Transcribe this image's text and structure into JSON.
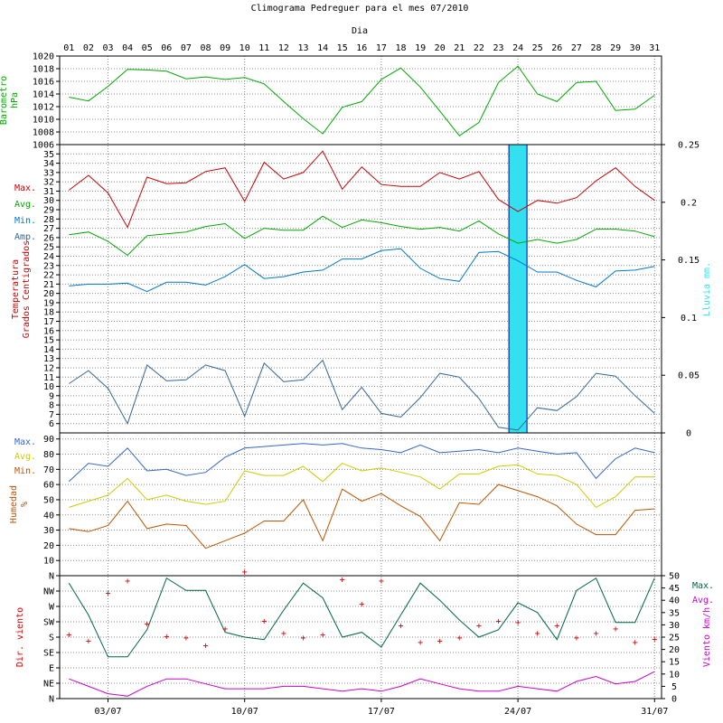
{
  "title": "Climograma Pedreguer para el mes 07/2010",
  "day_axis_label": "Dia",
  "colors": {
    "grid": "#888888",
    "axis": "#000000",
    "pressure": "#00aa00",
    "t_max": "#cc0000",
    "t_avg": "#00aa00",
    "t_min": "#0077cc",
    "t_amp": "#336699",
    "rain": "#33e0f0",
    "h_max": "#3366cc",
    "h_avg": "#cccc00",
    "h_min": "#bb5500",
    "wind_dir": "#dd0000",
    "wind_max": "#006644",
    "wind_avg": "#cc00cc"
  },
  "days": [
    "01",
    "02",
    "03",
    "04",
    "05",
    "06",
    "07",
    "08",
    "09",
    "10",
    "11",
    "12",
    "13",
    "14",
    "15",
    "16",
    "17",
    "18",
    "19",
    "20",
    "21",
    "22",
    "23",
    "24",
    "25",
    "26",
    "27",
    "28",
    "29",
    "30",
    "31"
  ],
  "date_ticks": [
    {
      "day": 3,
      "label": "03/07"
    },
    {
      "day": 10,
      "label": "10/07"
    },
    {
      "day": 17,
      "label": "17/07"
    },
    {
      "day": 24,
      "label": "24/07"
    },
    {
      "day": 31,
      "label": "31/07"
    }
  ],
  "panels": {
    "pressure": {
      "ylabel_line1": "Barometro",
      "ylabel_line2": "hPa",
      "ylim": [
        1006,
        1020
      ]
    },
    "temperature": {
      "ylabel_line1": "Temperatura",
      "ylabel_line2": "Grados Centigrados",
      "ylim": [
        6,
        35
      ],
      "y2label": "Lluvia mm.",
      "y2lim": [
        0,
        0.25
      ],
      "y2ticks": [
        "0",
        "0.05",
        "0.1",
        "0.15",
        "0.2",
        "0.25"
      ],
      "legend": [
        "Max.",
        "Avg.",
        "Min.",
        "Amp."
      ]
    },
    "humidity": {
      "ylabel_line1": "Humedad",
      "ylabel_line2": "%",
      "ylim": [
        0,
        90
      ],
      "legend": [
        "Max.",
        "Avg.",
        "Min."
      ]
    },
    "wind": {
      "ylabel": "Dir. viento",
      "dir_labels": [
        "N",
        "NE",
        "E",
        "SE",
        "S",
        "SW",
        "W",
        "NW",
        "N"
      ],
      "y2label": "Viento km/h",
      "y2lim": [
        0,
        50
      ],
      "legend": [
        "Max.",
        "Avg."
      ]
    }
  },
  "chart_data": [
    {
      "type": "line",
      "x": [
        1,
        2,
        3,
        4,
        5,
        6,
        7,
        8,
        9,
        10,
        11,
        12,
        13,
        14,
        15,
        16,
        17,
        18,
        19,
        20,
        21,
        22,
        23,
        24,
        25,
        26,
        27,
        28,
        29,
        30,
        31
      ],
      "series": [
        {
          "name": "Barometro hPa",
          "values": [
            1013.5,
            1012.9,
            1015.2,
            1017.9,
            1017.8,
            1017.6,
            1016.4,
            1016.7,
            1016.3,
            1016.6,
            1015.6,
            1012.8,
            1010.1,
            1007.7,
            1011.9,
            1012.8,
            1016.3,
            1018.1,
            1015.1,
            1011.3,
            1007.4,
            1009.5,
            1015.8,
            1018.4,
            1014.0,
            1012.8,
            1015.8,
            1016.0,
            1011.4,
            1011.6,
            1013.8
          ]
        }
      ],
      "ylabel": "Barometro hPa",
      "ylim": [
        1006,
        1020
      ]
    },
    {
      "type": "line",
      "x": [
        1,
        2,
        3,
        4,
        5,
        6,
        7,
        8,
        9,
        10,
        11,
        12,
        13,
        14,
        15,
        16,
        17,
        18,
        19,
        20,
        21,
        22,
        23,
        24,
        25,
        26,
        27,
        28,
        29,
        30,
        31
      ],
      "series": [
        {
          "name": "Max.",
          "values": [
            31.1,
            32.7,
            30.8,
            27.1,
            32.5,
            31.8,
            31.9,
            33.1,
            33.5,
            29.9,
            34.1,
            32.3,
            33.0,
            35.3,
            31.2,
            33.6,
            31.7,
            31.5,
            31.5,
            33.0,
            32.3,
            33.1,
            30.1,
            28.8,
            30.0,
            29.7,
            30.3,
            32.1,
            33.5,
            31.5,
            30.0
          ]
        },
        {
          "name": "Avg.",
          "values": [
            26.3,
            26.6,
            25.6,
            24.1,
            26.2,
            26.4,
            26.6,
            27.2,
            27.5,
            25.9,
            27.0,
            26.8,
            26.8,
            28.3,
            27.1,
            27.9,
            27.6,
            27.2,
            26.9,
            27.1,
            26.7,
            27.8,
            26.4,
            25.4,
            25.8,
            25.4,
            25.8,
            26.9,
            26.9,
            26.7,
            26.1
          ]
        },
        {
          "name": "Min.",
          "values": [
            20.8,
            21.0,
            21.0,
            21.1,
            20.2,
            21.2,
            21.2,
            20.9,
            21.8,
            23.1,
            21.6,
            21.8,
            22.3,
            22.5,
            23.7,
            23.7,
            24.6,
            24.8,
            22.7,
            21.6,
            21.3,
            24.4,
            24.5,
            23.5,
            22.3,
            22.3,
            21.4,
            20.7,
            22.4,
            22.5,
            22.9
          ]
        },
        {
          "name": "Amp.",
          "values": [
            10.3,
            11.7,
            9.8,
            6.0,
            12.3,
            10.6,
            10.7,
            12.3,
            11.7,
            6.8,
            12.5,
            10.5,
            10.7,
            12.8,
            7.5,
            9.9,
            7.1,
            6.7,
            8.8,
            11.4,
            11.0,
            8.7,
            5.6,
            5.3,
            7.7,
            7.4,
            8.9,
            11.4,
            11.1,
            9.0,
            7.1
          ]
        },
        {
          "name": "Lluvia mm.",
          "values": [
            0,
            0,
            0,
            0,
            0,
            0,
            0,
            0,
            0,
            0,
            0,
            0,
            0,
            0,
            0,
            0,
            0,
            0,
            0,
            0,
            0,
            0,
            0,
            0.25,
            0,
            0,
            0,
            0,
            0,
            0,
            0
          ]
        }
      ],
      "ylabel": "Temperatura Grados Centigrados",
      "ylim": [
        6,
        35
      ],
      "y2label": "Lluvia mm.",
      "y2lim": [
        0,
        0.25
      ]
    },
    {
      "type": "line",
      "x": [
        1,
        2,
        3,
        4,
        5,
        6,
        7,
        8,
        9,
        10,
        11,
        12,
        13,
        14,
        15,
        16,
        17,
        18,
        19,
        20,
        21,
        22,
        23,
        24,
        25,
        26,
        27,
        28,
        29,
        30,
        31
      ],
      "series": [
        {
          "name": "Max.",
          "values": [
            62,
            74,
            72,
            84,
            69,
            70,
            66,
            68,
            78,
            84,
            85,
            86,
            87,
            86,
            87,
            84,
            83,
            81,
            86,
            81,
            82,
            83,
            81,
            84,
            82,
            80,
            81,
            64,
            77,
            84,
            81
          ]
        },
        {
          "name": "Avg.",
          "values": [
            45,
            49,
            53,
            64,
            50,
            53,
            49,
            47,
            49,
            69,
            66,
            66,
            72,
            62,
            74,
            69,
            71,
            68,
            65,
            57,
            67,
            67,
            72,
            73,
            67,
            66,
            60,
            45,
            52,
            65,
            65
          ]
        },
        {
          "name": "Min.",
          "values": [
            31,
            29,
            33,
            49,
            31,
            34,
            33,
            18,
            23,
            28,
            36,
            36,
            50,
            23,
            57,
            49,
            54,
            46,
            39,
            23,
            48,
            47,
            60,
            56,
            52,
            46,
            34,
            27,
            27,
            43,
            44
          ]
        }
      ],
      "ylabel": "Humedad %",
      "ylim": [
        0,
        90
      ]
    },
    {
      "type": "line",
      "x": [
        1,
        2,
        3,
        4,
        5,
        6,
        7,
        8,
        9,
        10,
        11,
        12,
        13,
        14,
        15,
        16,
        17,
        18,
        19,
        20,
        21,
        22,
        23,
        24,
        25,
        26,
        27,
        28,
        29,
        30,
        31
      ],
      "series": [
        {
          "name": "Max.",
          "values": [
            47,
            34,
            17,
            17,
            28,
            49,
            44,
            44,
            27,
            25,
            24,
            36,
            47,
            41,
            25,
            27,
            21,
            34,
            47,
            40,
            32,
            25,
            28,
            39,
            35,
            24,
            44,
            49,
            31,
            31,
            49
          ]
        },
        {
          "name": "Avg.",
          "values": [
            8,
            5,
            2,
            1,
            5,
            8,
            8,
            6,
            4,
            4,
            4,
            5,
            5,
            4,
            3,
            4,
            3,
            5,
            8,
            6,
            4,
            3,
            3,
            5,
            4,
            3,
            7,
            9,
            6,
            7,
            11
          ]
        },
        {
          "name": "Dir. viento",
          "type": "scatter",
          "values": [
            4.2,
            3.8,
            6.9,
            7.7,
            4.9,
            4.1,
            4.0,
            3.5,
            4.6,
            8.3,
            5.1,
            4.3,
            4.0,
            4.2,
            7.8,
            6.2,
            7.7,
            4.8,
            3.7,
            3.8,
            4.0,
            4.8,
            5.1,
            5.0,
            4.3,
            4.8,
            4.0,
            4.3,
            4.6,
            3.7,
            3.9
          ]
        }
      ],
      "ylabel": "Dir. viento",
      "y2label": "Viento km/h",
      "y2lim": [
        0,
        50
      ]
    }
  ]
}
